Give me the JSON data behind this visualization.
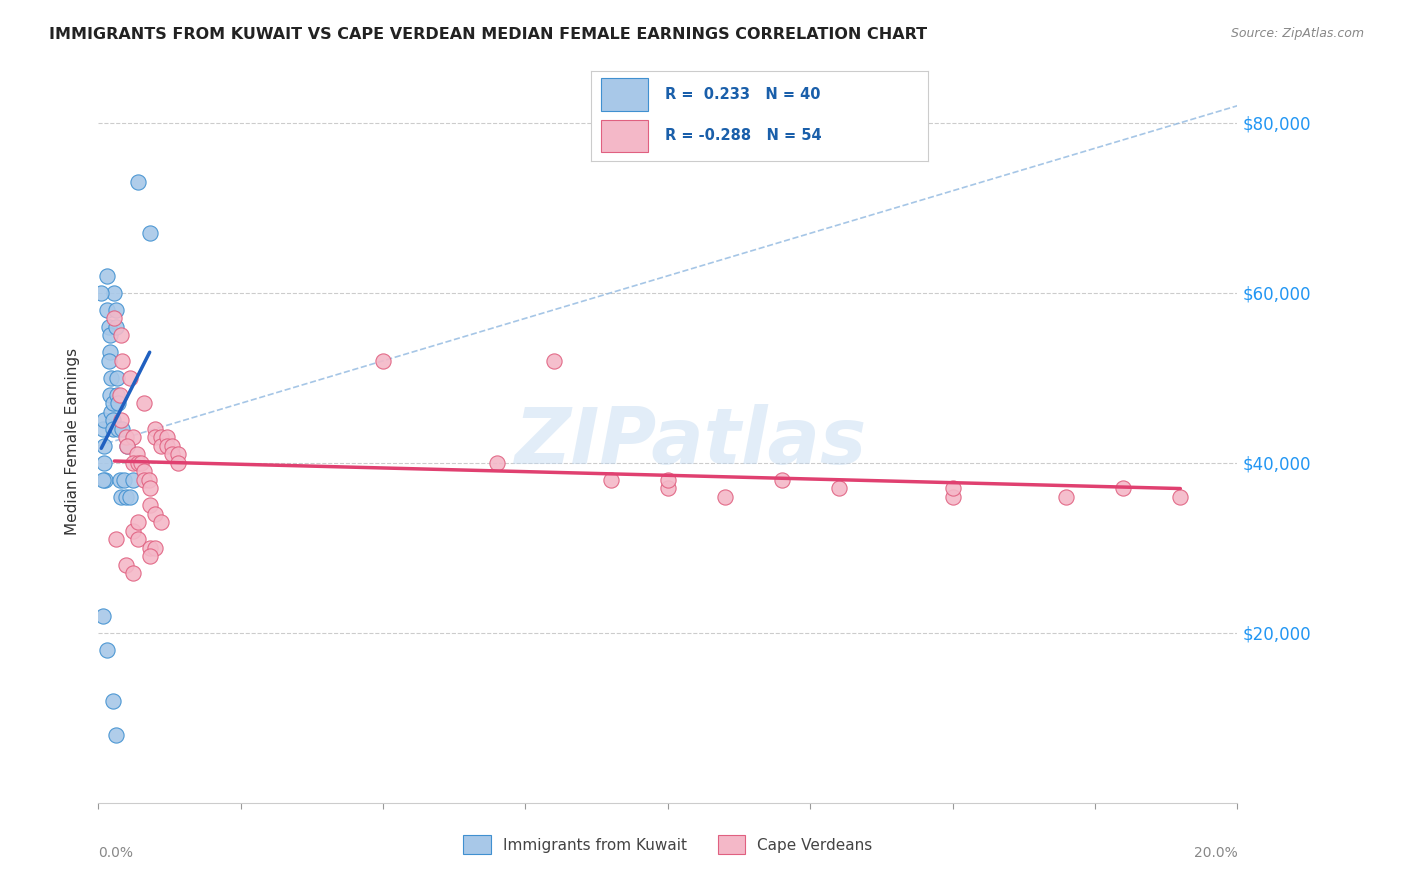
{
  "title": "IMMIGRANTS FROM KUWAIT VS CAPE VERDEAN MEDIAN FEMALE EARNINGS CORRELATION CHART",
  "source": "Source: ZipAtlas.com",
  "ylabel": "Median Female Earnings",
  "y_ticks": [
    20000,
    40000,
    60000,
    80000
  ],
  "y_tick_labels": [
    "$20,000",
    "$40,000",
    "$60,000",
    "$80,000"
  ],
  "x_min": 0.0,
  "x_max": 0.2,
  "y_min": 0,
  "y_max": 85000,
  "legend_r1": "R =  0.233",
  "legend_n1": "N = 40",
  "legend_r2": "R = -0.288",
  "legend_n2": "N = 54",
  "legend_label1": "Immigrants from Kuwait",
  "legend_label2": "Cape Verdeans",
  "watermark": "ZIPatlas",
  "blue_color": "#a8c8e8",
  "pink_color": "#f4b8c8",
  "blue_edge_color": "#4090d0",
  "pink_edge_color": "#e06080",
  "blue_line_color": "#2060c0",
  "pink_line_color": "#e04070",
  "dash_line_color": "#90b8e0",
  "blue_scatter": [
    [
      0.0008,
      44000
    ],
    [
      0.001,
      42000
    ],
    [
      0.001,
      40000
    ],
    [
      0.0012,
      38000
    ],
    [
      0.001,
      45000
    ],
    [
      0.0015,
      62000
    ],
    [
      0.0015,
      58000
    ],
    [
      0.0018,
      56000
    ],
    [
      0.002,
      55000
    ],
    [
      0.002,
      53000
    ],
    [
      0.0018,
      52000
    ],
    [
      0.0022,
      50000
    ],
    [
      0.002,
      48000
    ],
    [
      0.0022,
      46000
    ],
    [
      0.0025,
      47000
    ],
    [
      0.0025,
      45000
    ],
    [
      0.0025,
      44000
    ],
    [
      0.0028,
      60000
    ],
    [
      0.003,
      58000
    ],
    [
      0.003,
      56000
    ],
    [
      0.0032,
      50000
    ],
    [
      0.0032,
      48000
    ],
    [
      0.0035,
      47000
    ],
    [
      0.0035,
      44000
    ],
    [
      0.0038,
      38000
    ],
    [
      0.004,
      36000
    ],
    [
      0.0042,
      44000
    ],
    [
      0.0045,
      38000
    ],
    [
      0.0048,
      36000
    ],
    [
      0.005,
      42000
    ],
    [
      0.0055,
      36000
    ],
    [
      0.006,
      38000
    ],
    [
      0.0008,
      22000
    ],
    [
      0.0015,
      18000
    ],
    [
      0.0025,
      12000
    ],
    [
      0.003,
      8000
    ],
    [
      0.007,
      73000
    ],
    [
      0.009,
      67000
    ],
    [
      0.0005,
      60000
    ],
    [
      0.0008,
      38000
    ]
  ],
  "pink_scatter": [
    [
      0.0028,
      57000
    ],
    [
      0.004,
      55000
    ],
    [
      0.0042,
      52000
    ],
    [
      0.0055,
      50000
    ],
    [
      0.0038,
      48000
    ],
    [
      0.004,
      45000
    ],
    [
      0.0048,
      43000
    ],
    [
      0.006,
      43000
    ],
    [
      0.005,
      42000
    ],
    [
      0.0068,
      41000
    ],
    [
      0.006,
      40000
    ],
    [
      0.007,
      40000
    ],
    [
      0.0075,
      40000
    ],
    [
      0.008,
      39000
    ],
    [
      0.008,
      38000
    ],
    [
      0.0088,
      38000
    ],
    [
      0.009,
      37000
    ],
    [
      0.01,
      44000
    ],
    [
      0.01,
      43000
    ],
    [
      0.011,
      43000
    ],
    [
      0.011,
      42000
    ],
    [
      0.012,
      43000
    ],
    [
      0.012,
      42000
    ],
    [
      0.013,
      42000
    ],
    [
      0.013,
      41000
    ],
    [
      0.014,
      41000
    ],
    [
      0.014,
      40000
    ],
    [
      0.009,
      35000
    ],
    [
      0.01,
      34000
    ],
    [
      0.011,
      33000
    ],
    [
      0.006,
      32000
    ],
    [
      0.007,
      31000
    ],
    [
      0.009,
      30000
    ],
    [
      0.01,
      30000
    ],
    [
      0.009,
      29000
    ],
    [
      0.008,
      47000
    ],
    [
      0.05,
      52000
    ],
    [
      0.08,
      52000
    ],
    [
      0.07,
      40000
    ],
    [
      0.09,
      38000
    ],
    [
      0.1,
      37000
    ],
    [
      0.11,
      36000
    ],
    [
      0.13,
      37000
    ],
    [
      0.15,
      36000
    ],
    [
      0.1,
      38000
    ],
    [
      0.12,
      38000
    ],
    [
      0.15,
      37000
    ],
    [
      0.17,
      36000
    ],
    [
      0.18,
      37000
    ],
    [
      0.19,
      36000
    ],
    [
      0.0048,
      28000
    ],
    [
      0.006,
      27000
    ],
    [
      0.007,
      33000
    ],
    [
      0.003,
      31000
    ]
  ]
}
